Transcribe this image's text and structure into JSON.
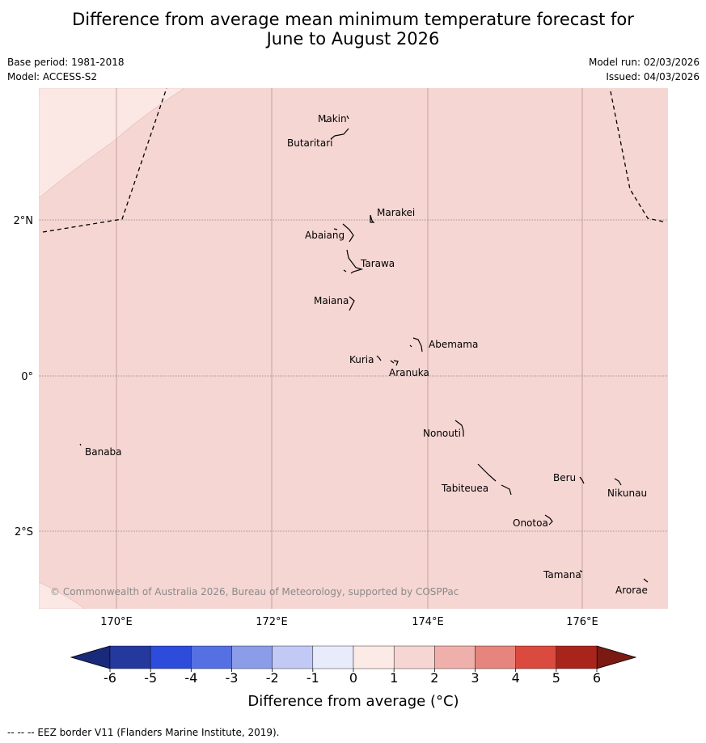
{
  "title": {
    "line1": "Difference from average mean minimum temperature forecast for",
    "line2": "June to August 2026"
  },
  "meta": {
    "base_period": "Base period: 1981-2018",
    "model": "Model: ACCESS-S2",
    "model_run": "Model run: 02/03/2026",
    "issued": "Issued: 04/03/2026"
  },
  "map": {
    "lat_labels": [
      "2°N",
      "0°",
      "2°S"
    ],
    "lon_labels": [
      "170°E",
      "172°E",
      "174°E",
      "176°E"
    ],
    "places": [
      "Makin",
      "Butaritari",
      "Marakei",
      "Abaiang",
      "Tarawa",
      "Maiana",
      "Abemama",
      "Kuria",
      "Aranuka",
      "Banaba",
      "Nonouti",
      "Beru",
      "Nikunau",
      "Tabiteuea",
      "Onotoa",
      "Tamana",
      "Arorae"
    ],
    "copyright": "© Commonwealth of Australia 2026, Bureau of Meteorology, supported by COSPPac",
    "colors": {
      "anomaly_0_1": "#fbe8e5",
      "anomaly_1_2": "#f5d6d3"
    }
  },
  "colorbar": {
    "ticks": [
      "-6",
      "-5",
      "-4",
      "-3",
      "-2",
      "-1",
      "0",
      "1",
      "2",
      "3",
      "4",
      "5",
      "6"
    ],
    "colors": [
      "#24389e",
      "#2d4cdc",
      "#5570e2",
      "#8b9de9",
      "#c2c9f4",
      "#e8ebfa",
      "#fceae7",
      "#f5d6d3",
      "#efb0ab",
      "#e6857d",
      "#da4a3e",
      "#a9251c"
    ],
    "under_color": "#1a2a7a",
    "over_color": "#7a1a12",
    "label": "Difference from average (°C)"
  },
  "footer": "--  --  -- EEZ border V11 (Flanders Marine Institute, 2019)."
}
